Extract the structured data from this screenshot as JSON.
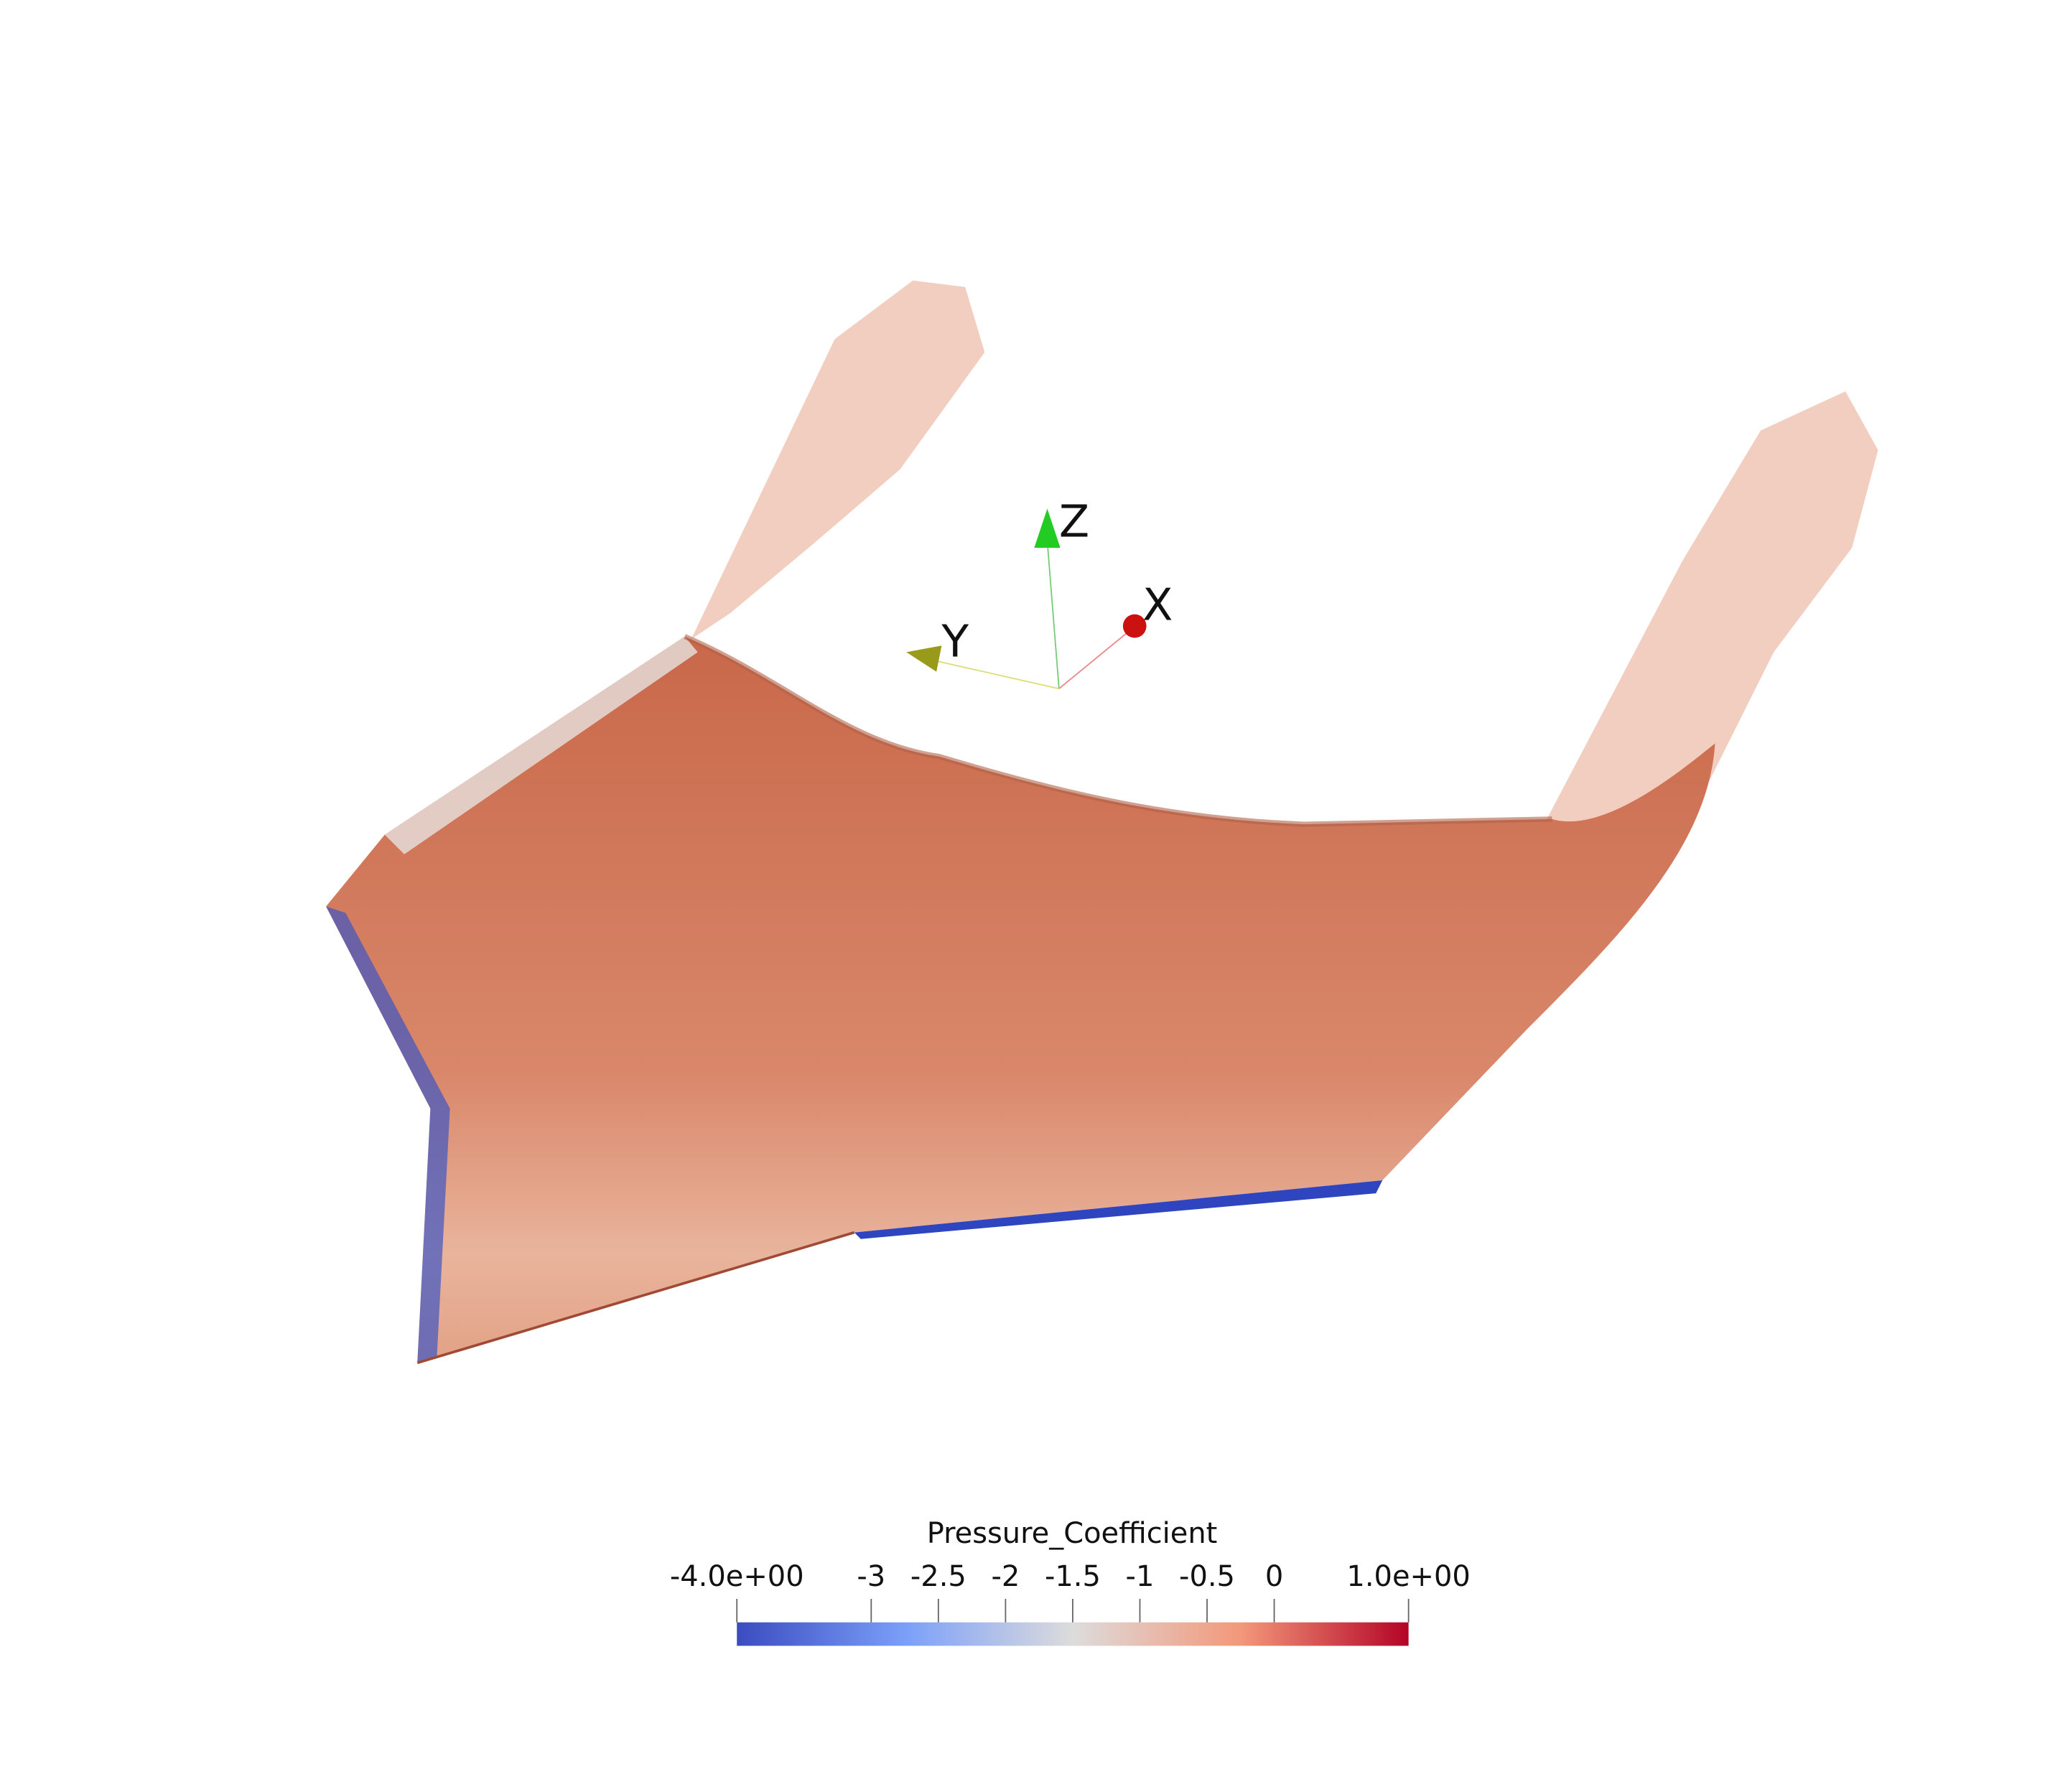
{
  "axes": {
    "x": "X",
    "y": "Y",
    "z": "Z"
  },
  "colorbar": {
    "title": "Pressure_Coefficient",
    "range": [
      {
        "value": -4,
        "label": "-4.0e+00"
      },
      {
        "value": 1,
        "label": "1.0e+00"
      }
    ],
    "ticks": [
      -3,
      -2.5,
      -2,
      -1.5,
      -1,
      -0.5,
      0
    ]
  }
}
